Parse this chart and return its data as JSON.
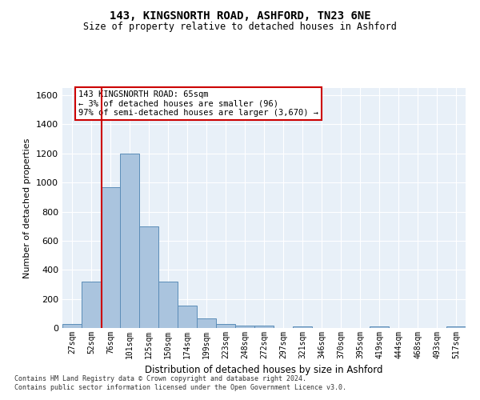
{
  "title": "143, KINGSNORTH ROAD, ASHFORD, TN23 6NE",
  "subtitle": "Size of property relative to detached houses in Ashford",
  "xlabel": "Distribution of detached houses by size in Ashford",
  "ylabel": "Number of detached properties",
  "bar_labels": [
    "27sqm",
    "52sqm",
    "76sqm",
    "101sqm",
    "125sqm",
    "150sqm",
    "174sqm",
    "199sqm",
    "223sqm",
    "248sqm",
    "272sqm",
    "297sqm",
    "321sqm",
    "346sqm",
    "370sqm",
    "395sqm",
    "419sqm",
    "444sqm",
    "468sqm",
    "493sqm",
    "517sqm"
  ],
  "bar_values": [
    27,
    320,
    970,
    1200,
    700,
    320,
    155,
    65,
    25,
    15,
    15,
    0,
    10,
    0,
    0,
    0,
    10,
    0,
    0,
    0,
    10
  ],
  "bar_color": "#aac4de",
  "bar_edge_color": "#5b8db8",
  "background_color": "#e8f0f8",
  "grid_color": "#ffffff",
  "red_line_x": 1.54,
  "annotation_text": "143 KINGSNORTH ROAD: 65sqm\n← 3% of detached houses are smaller (96)\n97% of semi-detached houses are larger (3,670) →",
  "annotation_box_color": "#ffffff",
  "annotation_box_edge": "#cc0000",
  "ylim": [
    0,
    1650
  ],
  "yticks": [
    0,
    200,
    400,
    600,
    800,
    1000,
    1200,
    1400,
    1600
  ],
  "footer1": "Contains HM Land Registry data © Crown copyright and database right 2024.",
  "footer2": "Contains public sector information licensed under the Open Government Licence v3.0."
}
